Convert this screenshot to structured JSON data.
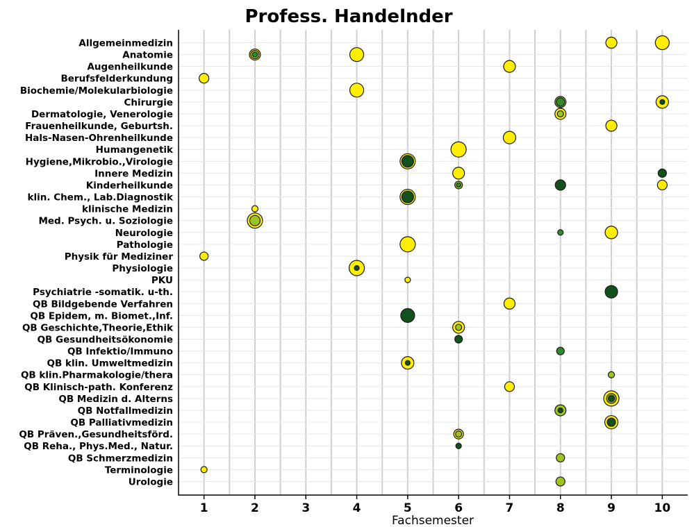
{
  "chart_data": {
    "type": "scatter",
    "title": "Profess. Handelnder",
    "xlabel": "Fachsemester",
    "ylabel": "",
    "xlim": [
      0.5,
      10.5
    ],
    "x_ticks": [
      "1",
      "2",
      "3",
      "4",
      "5",
      "6",
      "7",
      "8",
      "9",
      "10"
    ],
    "categories": [
      "Allgemeinmedizin",
      "Anatomie",
      "Augenheilkunde",
      "Berufsfelderkundung",
      "Biochemie/Molekularbiologie",
      "Chirurgie",
      "Dermatologie, Venerologie",
      "Frauenheilkunde, Geburtsh.",
      "Hals-Nasen-Ohrenheilkunde",
      "Humangenetik",
      "Hygiene,Mikrobio.,Virologie",
      "Innere Medizin",
      "Kinderheilkunde",
      "klin. Chem., Lab.Diagnostik",
      "klinische Medizin",
      "Med. Psych. u. Soziologie",
      "Neurologie",
      "Pathologie",
      "Physik für Mediziner",
      "Physiologie",
      "PKU",
      "Psychiatrie -somatik. u-th.",
      "QB Bildgebende Verfahren",
      "QB Epidem, m. Biomet.,Inf.",
      "QB Geschichte,Theorie,Ethik",
      "QB Gesundheitsökonomie",
      "QB Infektio/Immuno",
      "QB klin. Umweltmedizin",
      "QB klin.Pharmakologie/thera",
      "QB Klinisch-path. Konferenz",
      "QB Medizin d. Alterns",
      "QB Notfallmedizin",
      "QB Palliativmedizin",
      "QB Präven.,Gesundheitsförd.",
      "QB Reha., Phys.Med., Natur.",
      "QB Schmerzmedizin",
      "Terminologie",
      "Urologie"
    ],
    "colors": {
      "yellow": "#ffee00",
      "lime": "#9dc422",
      "green": "#2e8b2e",
      "dark": "#14501e",
      "outline": "#1a1a1a"
    },
    "points": [
      {
        "row": 0,
        "x": 9,
        "layers": [
          {
            "r": 8,
            "c": "yellow"
          }
        ]
      },
      {
        "row": 0,
        "x": 10,
        "layers": [
          {
            "r": 10,
            "c": "yellow"
          }
        ]
      },
      {
        "row": 1,
        "x": 2,
        "layers": [
          {
            "r": 8,
            "c": "yellow"
          },
          {
            "r": 6,
            "c": "lime"
          },
          {
            "r": 3.5,
            "c": "green"
          }
        ]
      },
      {
        "row": 1,
        "x": 4,
        "layers": [
          {
            "r": 10,
            "c": "yellow"
          }
        ]
      },
      {
        "row": 2,
        "x": 7,
        "layers": [
          {
            "r": 8.5,
            "c": "yellow"
          }
        ]
      },
      {
        "row": 3,
        "x": 1,
        "layers": [
          {
            "r": 7,
            "c": "yellow"
          }
        ]
      },
      {
        "row": 4,
        "x": 4,
        "layers": [
          {
            "r": 10,
            "c": "yellow"
          }
        ]
      },
      {
        "row": 5,
        "x": 8,
        "layers": [
          {
            "r": 8,
            "c": "lime"
          },
          {
            "r": 6,
            "c": "green"
          }
        ]
      },
      {
        "row": 5,
        "x": 10,
        "layers": [
          {
            "r": 9,
            "c": "yellow"
          },
          {
            "r": 3.5,
            "c": "dark"
          }
        ]
      },
      {
        "row": 6,
        "x": 8,
        "layers": [
          {
            "r": 8,
            "c": "yellow"
          },
          {
            "r": 4.5,
            "c": "lime"
          }
        ]
      },
      {
        "row": 7,
        "x": 9,
        "layers": [
          {
            "r": 8,
            "c": "yellow"
          }
        ]
      },
      {
        "row": 8,
        "x": 7,
        "layers": [
          {
            "r": 9,
            "c": "yellow"
          }
        ]
      },
      {
        "row": 9,
        "x": 6,
        "layers": [
          {
            "r": 11,
            "c": "yellow"
          }
        ]
      },
      {
        "row": 10,
        "x": 5,
        "layers": [
          {
            "r": 11,
            "c": "yellow"
          },
          {
            "r": 8.5,
            "c": "dark"
          }
        ]
      },
      {
        "row": 11,
        "x": 6,
        "layers": [
          {
            "r": 8.5,
            "c": "yellow"
          }
        ]
      },
      {
        "row": 11,
        "x": 10,
        "layers": [
          {
            "r": 6,
            "c": "dark"
          }
        ]
      },
      {
        "row": 12,
        "x": 6,
        "layers": [
          {
            "r": 5.5,
            "c": "lime"
          },
          {
            "r": 3,
            "c": "green"
          }
        ]
      },
      {
        "row": 12,
        "x": 8,
        "layers": [
          {
            "r": 7.5,
            "c": "dark"
          }
        ]
      },
      {
        "row": 12,
        "x": 10,
        "layers": [
          {
            "r": 7,
            "c": "yellow"
          }
        ]
      },
      {
        "row": 13,
        "x": 5,
        "layers": [
          {
            "r": 11,
            "c": "yellow"
          },
          {
            "r": 8.5,
            "c": "dark"
          }
        ]
      },
      {
        "row": 14,
        "x": 2,
        "layers": [
          {
            "r": 4.5,
            "c": "yellow"
          }
        ]
      },
      {
        "row": 15,
        "x": 2,
        "layers": [
          {
            "r": 11,
            "c": "yellow"
          },
          {
            "r": 7.5,
            "c": "lime"
          }
        ]
      },
      {
        "row": 16,
        "x": 8,
        "layers": [
          {
            "r": 4,
            "c": "green"
          }
        ]
      },
      {
        "row": 16,
        "x": 9,
        "layers": [
          {
            "r": 9,
            "c": "yellow"
          }
        ]
      },
      {
        "row": 17,
        "x": 5,
        "layers": [
          {
            "r": 11,
            "c": "yellow"
          }
        ]
      },
      {
        "row": 18,
        "x": 1,
        "layers": [
          {
            "r": 6,
            "c": "yellow"
          }
        ]
      },
      {
        "row": 19,
        "x": 4,
        "layers": [
          {
            "r": 11,
            "c": "yellow"
          },
          {
            "r": 3.5,
            "c": "dark"
          }
        ]
      },
      {
        "row": 20,
        "x": 5,
        "layers": [
          {
            "r": 4,
            "c": "yellow"
          }
        ]
      },
      {
        "row": 21,
        "x": 9,
        "layers": [
          {
            "r": 9,
            "c": "dark"
          }
        ]
      },
      {
        "row": 22,
        "x": 7,
        "layers": [
          {
            "r": 8,
            "c": "yellow"
          }
        ]
      },
      {
        "row": 23,
        "x": 5,
        "layers": [
          {
            "r": 10,
            "c": "dark"
          }
        ]
      },
      {
        "row": 24,
        "x": 6,
        "layers": [
          {
            "r": 8.5,
            "c": "yellow"
          },
          {
            "r": 4.5,
            "c": "lime"
          }
        ]
      },
      {
        "row": 25,
        "x": 6,
        "layers": [
          {
            "r": 5.5,
            "c": "dark"
          }
        ]
      },
      {
        "row": 26,
        "x": 8,
        "layers": [
          {
            "r": 5.5,
            "c": "green"
          }
        ]
      },
      {
        "row": 27,
        "x": 5,
        "layers": [
          {
            "r": 9,
            "c": "yellow"
          },
          {
            "r": 3.5,
            "c": "dark"
          }
        ]
      },
      {
        "row": 28,
        "x": 9,
        "layers": [
          {
            "r": 4.5,
            "c": "lime"
          }
        ]
      },
      {
        "row": 29,
        "x": 7,
        "layers": [
          {
            "r": 7,
            "c": "yellow"
          }
        ]
      },
      {
        "row": 30,
        "x": 9,
        "layers": [
          {
            "r": 11,
            "c": "yellow"
          },
          {
            "r": 7,
            "c": "lime"
          },
          {
            "r": 4.5,
            "c": "dark"
          }
        ]
      },
      {
        "row": 31,
        "x": 8,
        "layers": [
          {
            "r": 8,
            "c": "lime"
          },
          {
            "r": 3.5,
            "c": "dark"
          }
        ]
      },
      {
        "row": 32,
        "x": 9,
        "layers": [
          {
            "r": 9.5,
            "c": "yellow"
          },
          {
            "r": 6,
            "c": "dark"
          }
        ]
      },
      {
        "row": 33,
        "x": 6,
        "layers": [
          {
            "r": 7,
            "c": "yellow"
          },
          {
            "r": 4.5,
            "c": "lime"
          }
        ]
      },
      {
        "row": 34,
        "x": 6,
        "layers": [
          {
            "r": 4,
            "c": "dark"
          }
        ]
      },
      {
        "row": 35,
        "x": 8,
        "layers": [
          {
            "r": 6,
            "c": "lime"
          }
        ]
      },
      {
        "row": 36,
        "x": 1,
        "layers": [
          {
            "r": 4.5,
            "c": "yellow"
          }
        ]
      },
      {
        "row": 37,
        "x": 8,
        "layers": [
          {
            "r": 6.5,
            "c": "lime"
          }
        ]
      }
    ],
    "grid": true,
    "legend": "none"
  }
}
